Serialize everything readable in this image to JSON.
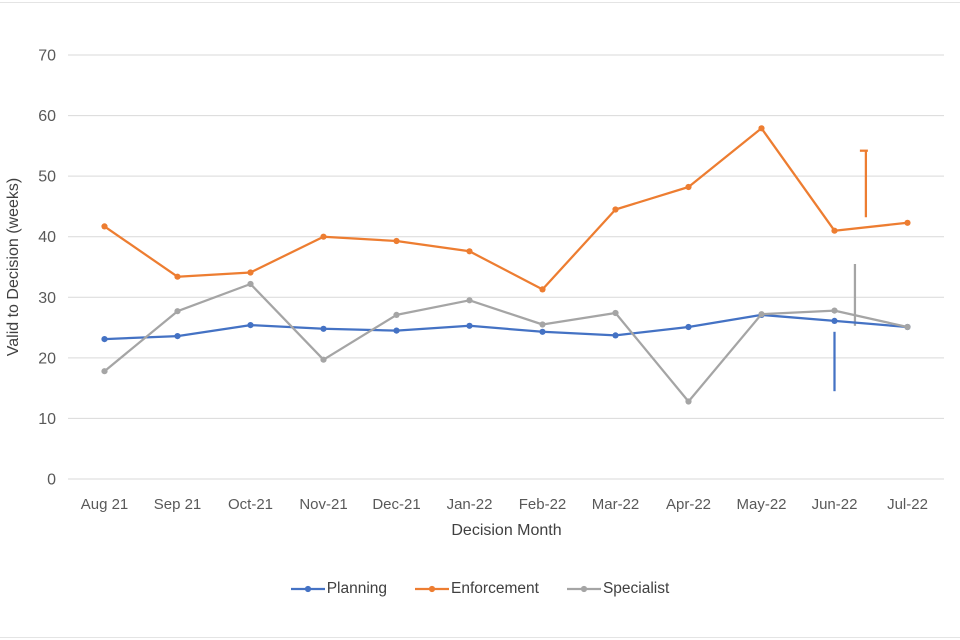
{
  "page": {
    "background": "#ffffff"
  },
  "colors": {
    "grid": "#d9d9d9",
    "tick_text": "#595959",
    "axis_title_text": "#404040",
    "legend_text": "#404040"
  },
  "chart_data": {
    "type": "line",
    "title": "",
    "xlabel": "Decision Month",
    "ylabel": "Valid to Decision (weeks)",
    "categories": [
      "Aug 21",
      "Sep 21",
      "Oct-21",
      "Nov-21",
      "Dec-21",
      "Jan-22",
      "Feb-22",
      "Mar-22",
      "Apr-22",
      "May-22",
      "Jun-22",
      "Jul-22"
    ],
    "series": [
      {
        "name": "Planning",
        "color": "#4472c4",
        "values": [
          23.1,
          23.6,
          25.4,
          24.8,
          24.5,
          25.3,
          24.3,
          23.7,
          25.1,
          27.1,
          26.1,
          25.1
        ]
      },
      {
        "name": "Enforcement",
        "color": "#ed7d31",
        "values": [
          41.7,
          33.4,
          34.1,
          40.0,
          39.3,
          37.6,
          31.3,
          44.5,
          48.2,
          57.9,
          41.0,
          42.3
        ]
      },
      {
        "name": "Specialist",
        "color": "#a5a5a5",
        "values": [
          17.8,
          27.7,
          32.2,
          19.7,
          27.1,
          29.5,
          25.5,
          27.4,
          12.8,
          27.2,
          27.8,
          25.1
        ]
      }
    ],
    "ylim": [
      0,
      70
    ],
    "yticks": [
      0,
      10,
      20,
      30,
      40,
      50,
      60,
      70
    ],
    "grid": true,
    "legend_position": "bottom",
    "artifacts": [
      {
        "series": "Planning",
        "color": "#4472c4",
        "x_index": 10,
        "from": 24.3,
        "to": 14.5,
        "cap_top": false
      },
      {
        "series": "Specialist",
        "color": "#a5a5a5",
        "x_index": 10.28,
        "from": 25.3,
        "to": 35.5,
        "cap_top": false
      },
      {
        "series": "Enforcement",
        "color": "#ed7d31",
        "x_index": 10.43,
        "from": 43.2,
        "to": 54.2,
        "cap_top": true
      }
    ]
  }
}
